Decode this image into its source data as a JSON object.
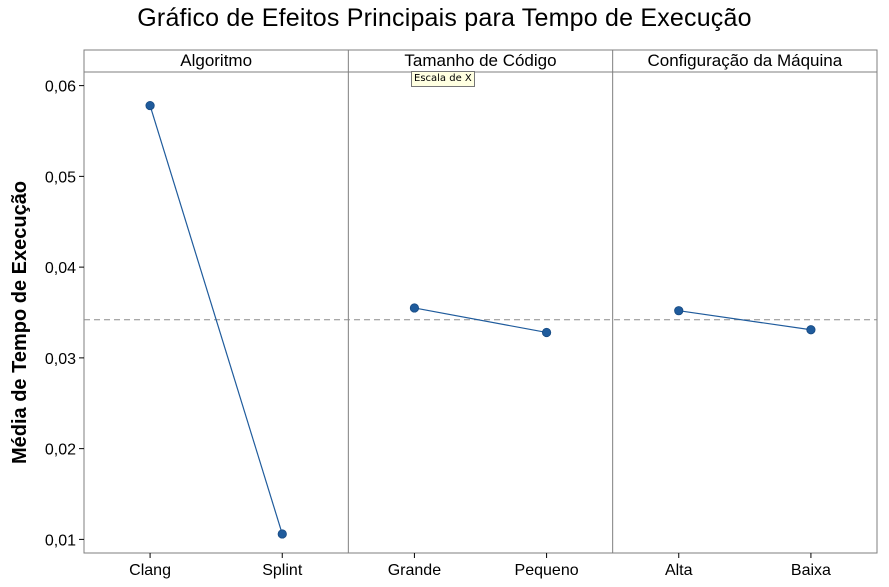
{
  "chart_data": {
    "type": "line",
    "title": "Gráfico de Efeitos Principais para Tempo de Execução",
    "ylabel": "Média de Tempo de Execução",
    "ylim": [
      0.0085,
      0.0615
    ],
    "yticks": [
      0.01,
      0.02,
      0.03,
      0.04,
      0.05,
      0.06
    ],
    "ytick_labels": [
      "0,01",
      "0,02",
      "0,03",
      "0,04",
      "0,05",
      "0,06"
    ],
    "grand_mean": 0.0342,
    "grid": false,
    "mean_line_style": "dashed",
    "line_color": "#1f5b9c",
    "marker_color": "#1f5b9c",
    "panels": [
      {
        "name": "Algoritmo",
        "categories": [
          "Clang",
          "Splint"
        ],
        "values": [
          0.0578,
          0.0106
        ]
      },
      {
        "name": "Tamanho de Código",
        "categories": [
          "Grande",
          "Pequeno"
        ],
        "values": [
          0.0355,
          0.0328
        ]
      },
      {
        "name": "Configuração da Máquina",
        "categories": [
          "Alta",
          "Baixa"
        ],
        "values": [
          0.0352,
          0.0331
        ]
      }
    ]
  },
  "tooltip": {
    "text": "Escala de X"
  }
}
